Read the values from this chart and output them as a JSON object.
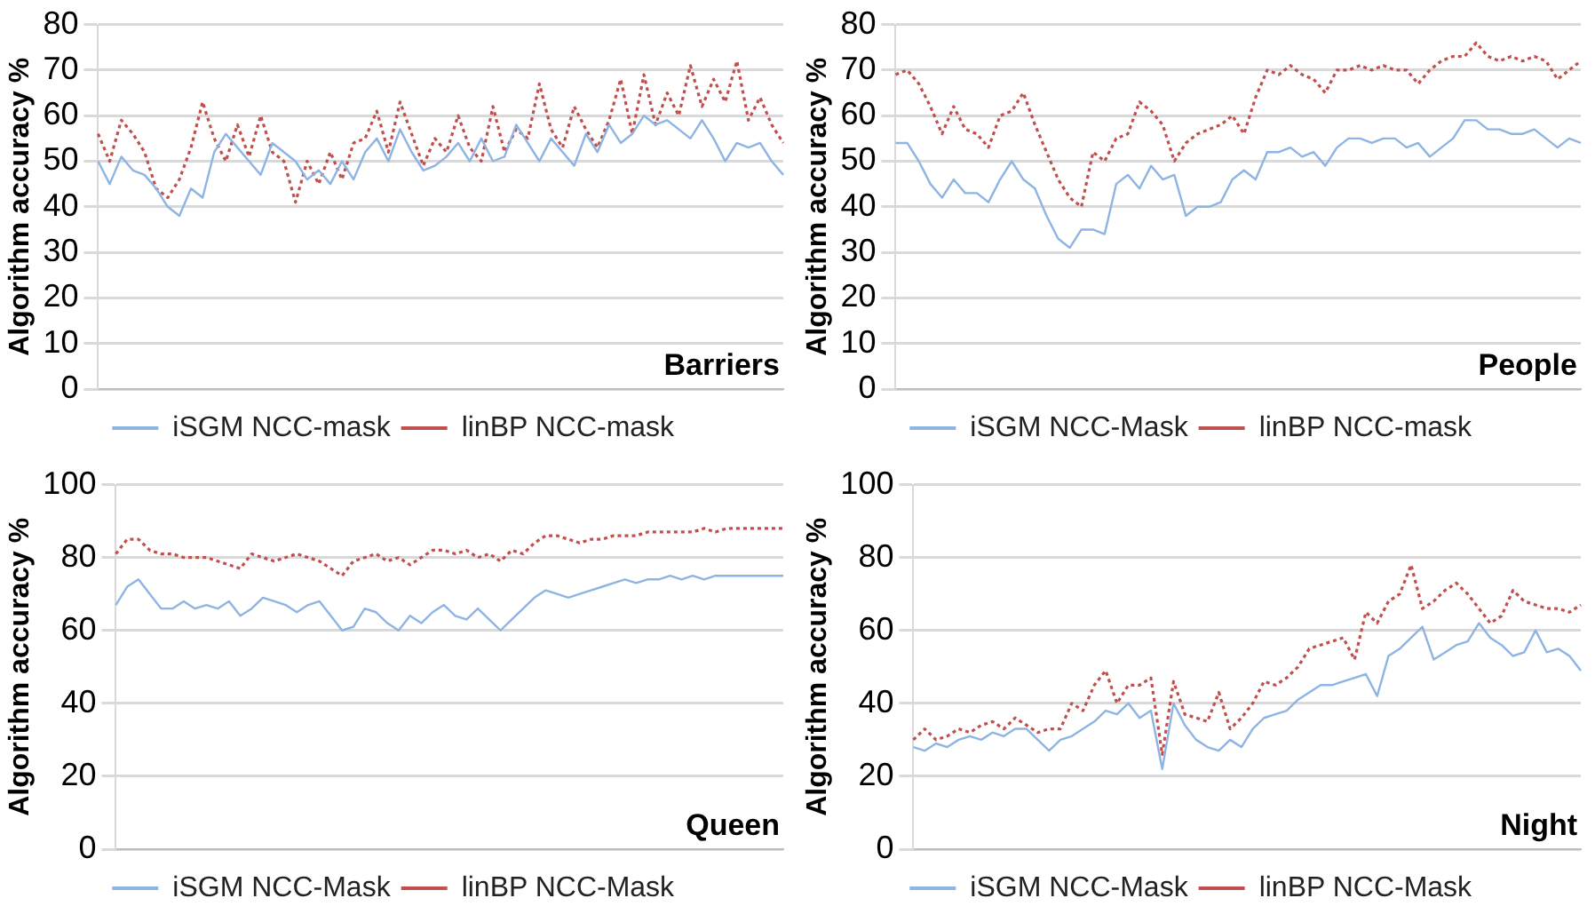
{
  "chart_data": [
    {
      "type": "line",
      "ylabel": "Algorithm accuracy %",
      "annotations": [
        "Barriers"
      ],
      "ylim": [
        0,
        80
      ],
      "yticks": [
        0,
        10,
        20,
        30,
        40,
        50,
        60,
        70,
        80
      ],
      "grid": "y",
      "legend": "bottom",
      "tick_labels": "y",
      "marker": "none",
      "categories": [
        null,
        null,
        null,
        null,
        null,
        null,
        null,
        null,
        null,
        null,
        null,
        null,
        null,
        null,
        null,
        null,
        null,
        null,
        null,
        null,
        null,
        null,
        null,
        null,
        null,
        null,
        null,
        null,
        null,
        null,
        null,
        null,
        null,
        null,
        null,
        null,
        null,
        null,
        null,
        null,
        null,
        null,
        null,
        null,
        null,
        null,
        null,
        null,
        null,
        null,
        null,
        null,
        null,
        null,
        null,
        null,
        null,
        null,
        null,
        null
      ],
      "series": [
        {
          "name": "iSGM NCC-mask",
          "color": "#8eb4e3",
          "line_style": "solid",
          "values": [
            50,
            45,
            51,
            48,
            47,
            44,
            40,
            38,
            44,
            42,
            52,
            56,
            53,
            50,
            47,
            54,
            52,
            50,
            46,
            48,
            45,
            50,
            46,
            52,
            55,
            50,
            57,
            52,
            48,
            49,
            51,
            54,
            50,
            55,
            50,
            51,
            58,
            54,
            50,
            55,
            52,
            49,
            56,
            52,
            58,
            54,
            56,
            60,
            58,
            59,
            57,
            55,
            59,
            55,
            50,
            54,
            53,
            54,
            50,
            47
          ]
        },
        {
          "name": "linBP NCC-mask",
          "color": "#c0504d",
          "line_style": "dotted",
          "values": [
            56,
            50,
            59,
            56,
            52,
            44,
            42,
            46,
            53,
            63,
            55,
            50,
            58,
            51,
            60,
            52,
            50,
            41,
            50,
            45,
            52,
            46,
            54,
            55,
            61,
            52,
            63,
            56,
            49,
            55,
            52,
            60,
            53,
            50,
            62,
            52,
            57,
            55,
            67,
            57,
            53,
            62,
            57,
            53,
            59,
            68,
            56,
            69,
            58,
            65,
            60,
            71,
            62,
            68,
            63,
            72,
            59,
            64,
            58,
            54
          ]
        }
      ]
    },
    {
      "type": "line",
      "ylabel": "Algorithm accuracy %",
      "annotations": [
        "People"
      ],
      "ylim": [
        0,
        80
      ],
      "yticks": [
        0,
        10,
        20,
        30,
        40,
        50,
        60,
        70,
        80
      ],
      "grid": "y",
      "legend": "bottom",
      "tick_labels": "y",
      "marker": "none",
      "categories": [
        null,
        null,
        null,
        null,
        null,
        null,
        null,
        null,
        null,
        null,
        null,
        null,
        null,
        null,
        null,
        null,
        null,
        null,
        null,
        null,
        null,
        null,
        null,
        null,
        null,
        null,
        null,
        null,
        null,
        null,
        null,
        null,
        null,
        null,
        null,
        null,
        null,
        null,
        null,
        null,
        null,
        null,
        null,
        null,
        null,
        null,
        null,
        null,
        null,
        null,
        null,
        null,
        null,
        null,
        null,
        null,
        null,
        null,
        null,
        null
      ],
      "series": [
        {
          "name": "iSGM NCC-Mask",
          "color": "#8eb4e3",
          "line_style": "solid",
          "values": [
            54,
            54,
            50,
            45,
            42,
            46,
            43,
            43,
            41,
            46,
            50,
            46,
            44,
            38,
            33,
            31,
            35,
            35,
            34,
            45,
            47,
            44,
            49,
            46,
            47,
            38,
            40,
            40,
            41,
            46,
            48,
            46,
            52,
            52,
            53,
            51,
            52,
            49,
            53,
            55,
            55,
            54,
            55,
            55,
            53,
            54,
            51,
            53,
            55,
            59,
            59,
            57,
            57,
            56,
            56,
            57,
            55,
            53,
            55,
            54
          ]
        },
        {
          "name": "linBP NCC-mask",
          "color": "#c0504d",
          "line_style": "dotted",
          "values": [
            69,
            70,
            67,
            62,
            56,
            62,
            57,
            56,
            53,
            60,
            61,
            65,
            58,
            52,
            46,
            42,
            40,
            52,
            50,
            55,
            56,
            63,
            61,
            58,
            50,
            54,
            56,
            57,
            58,
            60,
            56,
            64,
            70,
            69,
            71,
            69,
            68,
            65,
            70,
            70,
            71,
            70,
            71,
            70,
            70,
            67,
            70,
            72,
            73,
            73,
            76,
            73,
            72,
            73,
            72,
            73,
            72,
            68,
            70,
            72
          ]
        }
      ]
    },
    {
      "type": "line",
      "ylabel": "Algorithm accuracy %",
      "annotations": [
        "Queen"
      ],
      "ylim": [
        0,
        100
      ],
      "yticks": [
        0,
        20,
        40,
        60,
        80,
        100
      ],
      "grid": "y",
      "legend": "bottom",
      "tick_labels": "y",
      "marker": "none",
      "categories": [
        null,
        null,
        null,
        null,
        null,
        null,
        null,
        null,
        null,
        null,
        null,
        null,
        null,
        null,
        null,
        null,
        null,
        null,
        null,
        null,
        null,
        null,
        null,
        null,
        null,
        null,
        null,
        null,
        null,
        null,
        null,
        null,
        null,
        null,
        null,
        null,
        null,
        null,
        null,
        null,
        null,
        null,
        null,
        null,
        null,
        null,
        null,
        null,
        null,
        null,
        null,
        null,
        null,
        null,
        null,
        null,
        null,
        null,
        null,
        null
      ],
      "series": [
        {
          "name": "iSGM NCC-Mask",
          "color": "#8eb4e3",
          "line_style": "solid",
          "values": [
            67,
            72,
            74,
            70,
            66,
            66,
            68,
            66,
            67,
            66,
            68,
            64,
            66,
            69,
            68,
            67,
            65,
            67,
            68,
            64,
            60,
            61,
            66,
            65,
            62,
            60,
            64,
            62,
            65,
            67,
            64,
            63,
            66,
            63,
            60,
            63,
            66,
            69,
            71,
            70,
            69,
            70,
            71,
            72,
            73,
            74,
            73,
            74,
            74,
            75,
            74,
            75,
            74,
            75,
            75,
            75,
            75,
            75,
            75,
            75
          ]
        },
        {
          "name": "linBP NCC-Mask",
          "color": "#c0504d",
          "line_style": "dotted",
          "values": [
            81,
            85,
            85,
            82,
            81,
            81,
            80,
            80,
            80,
            79,
            78,
            77,
            81,
            80,
            79,
            80,
            81,
            80,
            79,
            77,
            75,
            79,
            80,
            81,
            79,
            80,
            78,
            80,
            82,
            82,
            81,
            82,
            80,
            81,
            79,
            82,
            81,
            84,
            86,
            86,
            85,
            84,
            85,
            85,
            86,
            86,
            86,
            87,
            87,
            87,
            87,
            87,
            88,
            87,
            88,
            88,
            88,
            88,
            88,
            88
          ]
        }
      ]
    },
    {
      "type": "line",
      "ylabel": "Algorithm accuracy %",
      "annotations": [
        "Night"
      ],
      "ylim": [
        0,
        100
      ],
      "yticks": [
        0,
        20,
        40,
        60,
        80,
        100
      ],
      "grid": "y",
      "legend": "bottom",
      "tick_labels": "y",
      "marker": "none",
      "categories": [
        null,
        null,
        null,
        null,
        null,
        null,
        null,
        null,
        null,
        null,
        null,
        null,
        null,
        null,
        null,
        null,
        null,
        null,
        null,
        null,
        null,
        null,
        null,
        null,
        null,
        null,
        null,
        null,
        null,
        null,
        null,
        null,
        null,
        null,
        null,
        null,
        null,
        null,
        null,
        null,
        null,
        null,
        null,
        null,
        null,
        null,
        null,
        null,
        null,
        null,
        null,
        null,
        null,
        null,
        null,
        null,
        null,
        null,
        null,
        null
      ],
      "series": [
        {
          "name": "iSGM NCC-Mask",
          "color": "#8eb4e3",
          "line_style": "solid",
          "values": [
            28,
            27,
            29,
            28,
            30,
            31,
            30,
            32,
            31,
            33,
            33,
            30,
            27,
            30,
            31,
            33,
            35,
            38,
            37,
            40,
            36,
            38,
            22,
            40,
            34,
            30,
            28,
            27,
            30,
            28,
            33,
            36,
            37,
            38,
            41,
            43,
            45,
            45,
            46,
            47,
            48,
            42,
            53,
            55,
            58,
            61,
            52,
            54,
            56,
            57,
            62,
            58,
            56,
            53,
            54,
            60,
            54,
            55,
            53,
            49
          ]
        },
        {
          "name": "linBP NCC-Mask",
          "color": "#c0504d",
          "line_style": "dotted",
          "values": [
            30,
            33,
            30,
            31,
            33,
            32,
            34,
            35,
            33,
            36,
            34,
            32,
            33,
            33,
            40,
            38,
            45,
            49,
            40,
            45,
            45,
            47,
            26,
            46,
            37,
            36,
            35,
            43,
            33,
            36,
            40,
            46,
            45,
            47,
            50,
            55,
            56,
            57,
            58,
            52,
            65,
            62,
            68,
            70,
            78,
            66,
            68,
            71,
            73,
            70,
            66,
            62,
            64,
            71,
            68,
            67,
            66,
            66,
            65,
            67
          ]
        }
      ]
    }
  ]
}
